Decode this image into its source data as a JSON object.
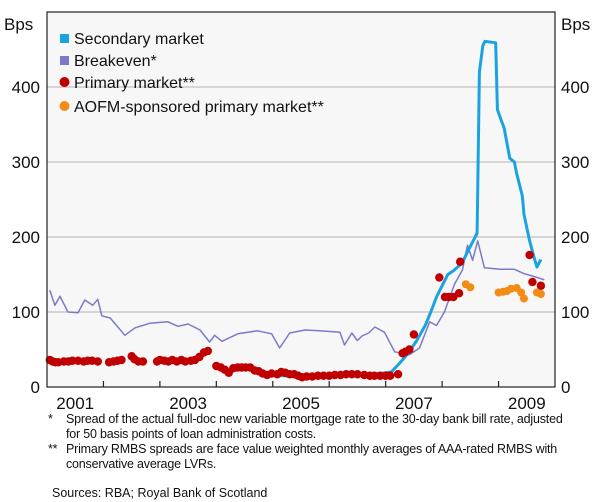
{
  "chart_data": {
    "type": "line",
    "title": "",
    "ylabel_left": "Bps",
    "ylabel_right": "Bps",
    "xlabel": "",
    "xlim": [
      2001.0,
      2010.0
    ],
    "ylim": [
      0,
      500
    ],
    "y_ticks": [
      0,
      100,
      200,
      300,
      400
    ],
    "x_tick_labels": [
      "2001",
      "2003",
      "2005",
      "2007",
      "2009"
    ],
    "x_label_years": [
      2001.5,
      2003.5,
      2005.5,
      2007.5,
      2009.5
    ],
    "x_tick_marks": [
      2002,
      2003,
      2004,
      2005,
      2006,
      2007,
      2008,
      2009
    ],
    "grid": true,
    "legend_position": "top-left",
    "series": [
      {
        "name": "Secondary market",
        "kind": "line",
        "color": "#1aa3e0",
        "points": [
          [
            2004.9,
            16
          ],
          [
            2005.2,
            15
          ],
          [
            2005.5,
            13
          ],
          [
            2006.0,
            16
          ],
          [
            2006.5,
            16
          ],
          [
            2006.9,
            18
          ],
          [
            2007.1,
            20
          ],
          [
            2007.25,
            32
          ],
          [
            2007.4,
            45
          ],
          [
            2007.55,
            62
          ],
          [
            2007.7,
            82
          ],
          [
            2007.8,
            100
          ],
          [
            2007.9,
            120
          ],
          [
            2008.0,
            135
          ],
          [
            2008.1,
            150
          ],
          [
            2008.2,
            155
          ],
          [
            2008.35,
            165
          ],
          [
            2008.45,
            180
          ],
          [
            2008.55,
            195
          ],
          [
            2008.62,
            205
          ],
          [
            2008.66,
            420
          ],
          [
            2008.72,
            455
          ],
          [
            2008.76,
            461
          ],
          [
            2008.95,
            459
          ],
          [
            2008.98,
            370
          ],
          [
            2009.05,
            355
          ],
          [
            2009.1,
            345
          ],
          [
            2009.2,
            305
          ],
          [
            2009.28,
            300
          ],
          [
            2009.32,
            285
          ],
          [
            2009.42,
            255
          ],
          [
            2009.45,
            230
          ],
          [
            2009.55,
            195
          ],
          [
            2009.62,
            175
          ],
          [
            2009.68,
            160
          ],
          [
            2009.75,
            170
          ]
        ]
      },
      {
        "name": "Breakeven*",
        "kind": "line",
        "color": "#7a7ac8",
        "points": [
          [
            2001.05,
            129
          ],
          [
            2001.14,
            109
          ],
          [
            2001.23,
            121
          ],
          [
            2001.37,
            100
          ],
          [
            2001.55,
            99
          ],
          [
            2001.67,
            116
          ],
          [
            2001.81,
            109
          ],
          [
            2001.9,
            117
          ],
          [
            2001.97,
            95
          ],
          [
            2002.12,
            92
          ],
          [
            2002.38,
            69
          ],
          [
            2002.56,
            79
          ],
          [
            2002.82,
            85
          ],
          [
            2003.14,
            87
          ],
          [
            2003.32,
            81
          ],
          [
            2003.5,
            84
          ],
          [
            2003.71,
            76
          ],
          [
            2003.88,
            60
          ],
          [
            2003.97,
            69
          ],
          [
            2004.1,
            61
          ],
          [
            2004.38,
            71
          ],
          [
            2004.73,
            75
          ],
          [
            2004.98,
            71
          ],
          [
            2005.12,
            52
          ],
          [
            2005.3,
            72
          ],
          [
            2005.57,
            76
          ],
          [
            2005.83,
            75
          ],
          [
            2006.19,
            73
          ],
          [
            2006.27,
            56
          ],
          [
            2006.4,
            72
          ],
          [
            2006.5,
            62
          ],
          [
            2006.58,
            68
          ],
          [
            2006.7,
            72
          ],
          [
            2006.81,
            80
          ],
          [
            2006.98,
            73
          ],
          [
            2007.16,
            47
          ],
          [
            2007.42,
            43
          ],
          [
            2007.6,
            52
          ],
          [
            2007.78,
            87
          ],
          [
            2007.9,
            82
          ],
          [
            2008.04,
            100
          ],
          [
            2008.22,
            137
          ],
          [
            2008.36,
            156
          ],
          [
            2008.45,
            189
          ],
          [
            2008.54,
            169
          ],
          [
            2008.63,
            195
          ],
          [
            2008.75,
            159
          ],
          [
            2009.02,
            157
          ],
          [
            2009.28,
            157
          ],
          [
            2009.46,
            151
          ],
          [
            2009.6,
            148
          ],
          [
            2009.81,
            143
          ]
        ]
      },
      {
        "name": "Primary market**",
        "kind": "scatter",
        "color": "#c00000",
        "points": [
          [
            2001.05,
            36
          ],
          [
            2001.1,
            34
          ],
          [
            2001.15,
            33
          ],
          [
            2001.2,
            33
          ],
          [
            2001.3,
            34
          ],
          [
            2001.38,
            34
          ],
          [
            2001.45,
            35
          ],
          [
            2001.55,
            35
          ],
          [
            2001.65,
            34
          ],
          [
            2001.72,
            35
          ],
          [
            2001.8,
            35
          ],
          [
            2001.9,
            34
          ],
          [
            2002.1,
            33
          ],
          [
            2002.18,
            34
          ],
          [
            2002.25,
            35
          ],
          [
            2002.32,
            36
          ],
          [
            2002.5,
            41
          ],
          [
            2002.55,
            37
          ],
          [
            2002.62,
            34
          ],
          [
            2002.7,
            34
          ],
          [
            2002.95,
            34
          ],
          [
            2003.0,
            36
          ],
          [
            2003.08,
            35
          ],
          [
            2003.15,
            34
          ],
          [
            2003.22,
            36
          ],
          [
            2003.3,
            34
          ],
          [
            2003.38,
            36
          ],
          [
            2003.45,
            34
          ],
          [
            2003.55,
            35
          ],
          [
            2003.62,
            36
          ],
          [
            2003.7,
            40
          ],
          [
            2003.78,
            46
          ],
          [
            2003.85,
            48
          ],
          [
            2004.0,
            28
          ],
          [
            2004.08,
            26
          ],
          [
            2004.15,
            23
          ],
          [
            2004.22,
            19
          ],
          [
            2004.3,
            25
          ],
          [
            2004.38,
            26
          ],
          [
            2004.45,
            26
          ],
          [
            2004.52,
            26
          ],
          [
            2004.6,
            26
          ],
          [
            2004.68,
            22
          ],
          [
            2004.75,
            21
          ],
          [
            2004.82,
            18
          ],
          [
            2004.9,
            16
          ],
          [
            2004.98,
            18
          ],
          [
            2005.08,
            17
          ],
          [
            2005.15,
            20
          ],
          [
            2005.22,
            19
          ],
          [
            2005.3,
            17
          ],
          [
            2005.38,
            17
          ],
          [
            2005.45,
            15
          ],
          [
            2005.52,
            13
          ],
          [
            2005.6,
            14
          ],
          [
            2005.7,
            14
          ],
          [
            2005.8,
            15
          ],
          [
            2005.9,
            15
          ],
          [
            2006.0,
            15
          ],
          [
            2006.1,
            16
          ],
          [
            2006.2,
            16
          ],
          [
            2006.3,
            17
          ],
          [
            2006.4,
            17
          ],
          [
            2006.5,
            17
          ],
          [
            2006.62,
            16
          ],
          [
            2006.72,
            15
          ],
          [
            2006.8,
            15
          ],
          [
            2006.9,
            15
          ],
          [
            2007.0,
            15
          ],
          [
            2007.08,
            15
          ],
          [
            2007.22,
            17
          ],
          [
            2007.3,
            45
          ],
          [
            2007.35,
            47
          ],
          [
            2007.42,
            50
          ],
          [
            2007.5,
            70
          ],
          [
            2007.95,
            146
          ],
          [
            2008.05,
            120
          ],
          [
            2008.12,
            120
          ],
          [
            2008.2,
            120
          ],
          [
            2008.3,
            125
          ],
          [
            2008.32,
            167
          ],
          [
            2009.55,
            176
          ],
          [
            2009.6,
            140
          ],
          [
            2009.75,
            135
          ]
        ]
      },
      {
        "name": "AOFM-sponsored primary market**",
        "kind": "scatter",
        "color": "#f28c14",
        "points": [
          [
            2008.42,
            137
          ],
          [
            2008.5,
            133
          ],
          [
            2009.0,
            126
          ],
          [
            2009.08,
            127
          ],
          [
            2009.15,
            128
          ],
          [
            2009.22,
            131
          ],
          [
            2009.32,
            132
          ],
          [
            2009.4,
            126
          ],
          [
            2009.45,
            118
          ],
          [
            2009.68,
            126
          ],
          [
            2009.75,
            124
          ]
        ]
      }
    ]
  },
  "footnotes": {
    "note1_mark": "*",
    "note1_text": "Spread of the actual full-doc new variable mortgage rate to the 30-day bank bill rate, adjusted for 50 basis points of loan administration costs.",
    "note2_mark": "**",
    "note2_text": "Primary RMBS spreads are face value weighted monthly averages of AAA-rated RMBS with conservative average LVRs.",
    "sources": "Sources: RBA; Royal Bank of Scotland"
  }
}
